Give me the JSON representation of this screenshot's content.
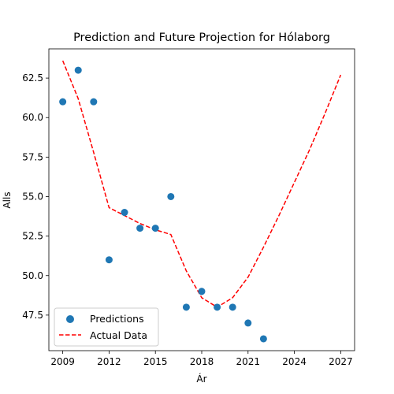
{
  "chart_data": {
    "type": "scatter",
    "title": "Prediction and Future Projection for Hólaborg",
    "xlabel": "Ár",
    "ylabel": "Alls",
    "xlim": [
      2008.1,
      2027.9
    ],
    "ylim": [
      45.25,
      64.35
    ],
    "x_ticks": [
      2009,
      2012,
      2015,
      2018,
      2021,
      2024,
      2027
    ],
    "x_tick_labels": [
      "2009",
      "2012",
      "2015",
      "2018",
      "2021",
      "2024",
      "2027"
    ],
    "y_ticks": [
      47.5,
      50.0,
      52.5,
      55.0,
      57.5,
      60.0,
      62.5
    ],
    "y_tick_labels": [
      "47.5",
      "50.0",
      "52.5",
      "55.0",
      "57.5",
      "60.0",
      "62.5"
    ],
    "grid": false,
    "legend_position": "lower-left",
    "series": [
      {
        "name": "Predictions",
        "kind": "scatter",
        "color": "#1f77b4",
        "x": [
          2009,
          2010,
          2011,
          2012,
          2013,
          2014,
          2015,
          2016,
          2017,
          2018,
          2019,
          2020,
          2021,
          2022
        ],
        "y": [
          61,
          63,
          61,
          51,
          54,
          53,
          53,
          55,
          48,
          49,
          48,
          48,
          47,
          46
        ]
      },
      {
        "name": "Actual Data",
        "kind": "line",
        "style": "dashed",
        "color": "#ff0000",
        "x": [
          2009,
          2010,
          2011,
          2012,
          2013,
          2014,
          2015,
          2016,
          2017,
          2018,
          2019,
          2020,
          2021,
          2022,
          2023,
          2024,
          2025,
          2026,
          2027
        ],
        "y": [
          63.6,
          61.2,
          57.8,
          54.3,
          53.8,
          53.3,
          52.9,
          52.6,
          50.3,
          48.6,
          48.0,
          48.6,
          49.9,
          51.8,
          53.8,
          55.9,
          58.0,
          60.3,
          62.7
        ]
      }
    ]
  }
}
